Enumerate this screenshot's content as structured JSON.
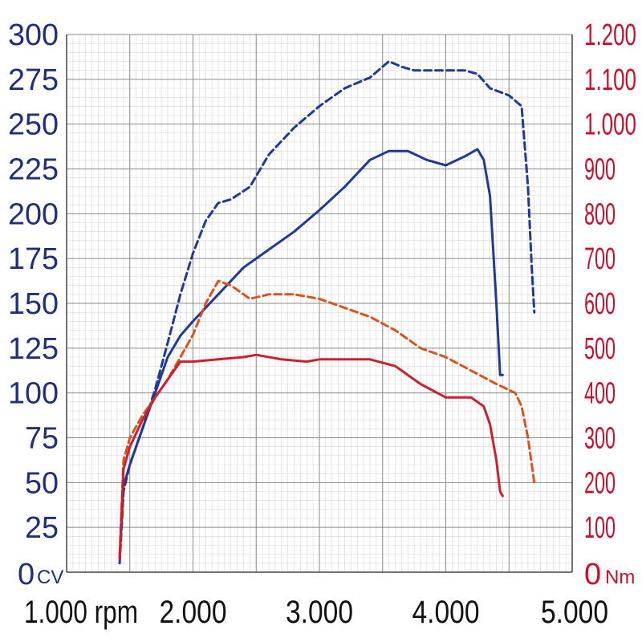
{
  "chart_data": {
    "type": "line",
    "x_ticks": [
      "1.000 rpm",
      "2.000",
      "3.000",
      "4.000",
      "5.000"
    ],
    "x_tick_values": [
      1000,
      2000,
      3000,
      4000,
      5000
    ],
    "xlim": [
      1000,
      5000
    ],
    "y_left": {
      "unit": "CV",
      "ylim": [
        0,
        300
      ],
      "ticks": [
        "0",
        "25",
        "50",
        "75",
        "100",
        "125",
        "150",
        "175",
        "200",
        "225",
        "250",
        "275",
        "300"
      ],
      "tick_values": [
        0,
        25,
        50,
        75,
        100,
        125,
        150,
        175,
        200,
        225,
        250,
        275,
        300
      ],
      "color": "#1f2f7a"
    },
    "y_right": {
      "unit": "Nm",
      "ylim": [
        0,
        1200
      ],
      "ticks": [
        "0",
        "100",
        "200",
        "300",
        "400",
        "500",
        "600",
        "700",
        "800",
        "900",
        "1.000",
        "1.100",
        "1.200"
      ],
      "tick_values": [
        0,
        100,
        200,
        300,
        400,
        500,
        600,
        700,
        800,
        900,
        1000,
        1100,
        1200
      ],
      "color": "#c8102e"
    },
    "grid": true,
    "series": [
      {
        "axis": "left",
        "style": "dashed",
        "color": "#1f3a93",
        "x": [
          1420,
          1450,
          1500,
          1600,
          1700,
          1800,
          1900,
          2000,
          2100,
          2200,
          2300,
          2450,
          2600,
          2800,
          3000,
          3200,
          3400,
          3550,
          3650,
          3750,
          3850,
          3950,
          4050,
          4150,
          4250,
          4350,
          4500,
          4600,
          4650,
          4680,
          4700
        ],
        "y": [
          5,
          45,
          60,
          80,
          102,
          128,
          155,
          178,
          196,
          206,
          208,
          215,
          233,
          248,
          260,
          270,
          276,
          285,
          282,
          280,
          280,
          280,
          280,
          280,
          278,
          270,
          266,
          260,
          215,
          170,
          145
        ]
      },
      {
        "axis": "left",
        "style": "solid",
        "color": "#1f3a93",
        "x": [
          1420,
          1450,
          1500,
          1600,
          1700,
          1800,
          1900,
          2000,
          2200,
          2400,
          2600,
          2800,
          3000,
          3200,
          3400,
          3550,
          3700,
          3850,
          4000,
          4150,
          4250,
          4300,
          4350,
          4400,
          4430,
          4450
        ],
        "y": [
          8,
          48,
          60,
          80,
          100,
          120,
          132,
          140,
          155,
          170,
          180,
          190,
          202,
          215,
          230,
          235,
          235,
          230,
          227,
          232,
          236,
          230,
          210,
          150,
          110,
          110
        ]
      },
      {
        "axis": "right",
        "style": "dashed",
        "color": "#d9531e",
        "x": [
          1420,
          1450,
          1500,
          1600,
          1700,
          1800,
          1900,
          2000,
          2100,
          2200,
          2300,
          2450,
          2600,
          2800,
          3000,
          3200,
          3400,
          3600,
          3800,
          4000,
          4200,
          4400,
          4550,
          4600,
          4650,
          4700
        ],
        "y": [
          40,
          250,
          300,
          350,
          390,
          430,
          480,
          530,
          600,
          650,
          640,
          610,
          620,
          620,
          610,
          590,
          570,
          540,
          500,
          480,
          450,
          420,
          400,
          370,
          300,
          200
        ]
      },
      {
        "axis": "right",
        "style": "solid",
        "color": "#cc1f2f",
        "x": [
          1420,
          1450,
          1500,
          1600,
          1700,
          1800,
          1900,
          2000,
          2200,
          2400,
          2500,
          2700,
          2900,
          3000,
          3200,
          3400,
          3600,
          3800,
          4000,
          4200,
          4300,
          4350,
          4400,
          4430,
          4450
        ],
        "y": [
          30,
          230,
          280,
          340,
          390,
          430,
          470,
          470,
          475,
          480,
          485,
          475,
          470,
          475,
          475,
          475,
          460,
          420,
          390,
          390,
          370,
          330,
          250,
          180,
          170
        ]
      }
    ]
  }
}
